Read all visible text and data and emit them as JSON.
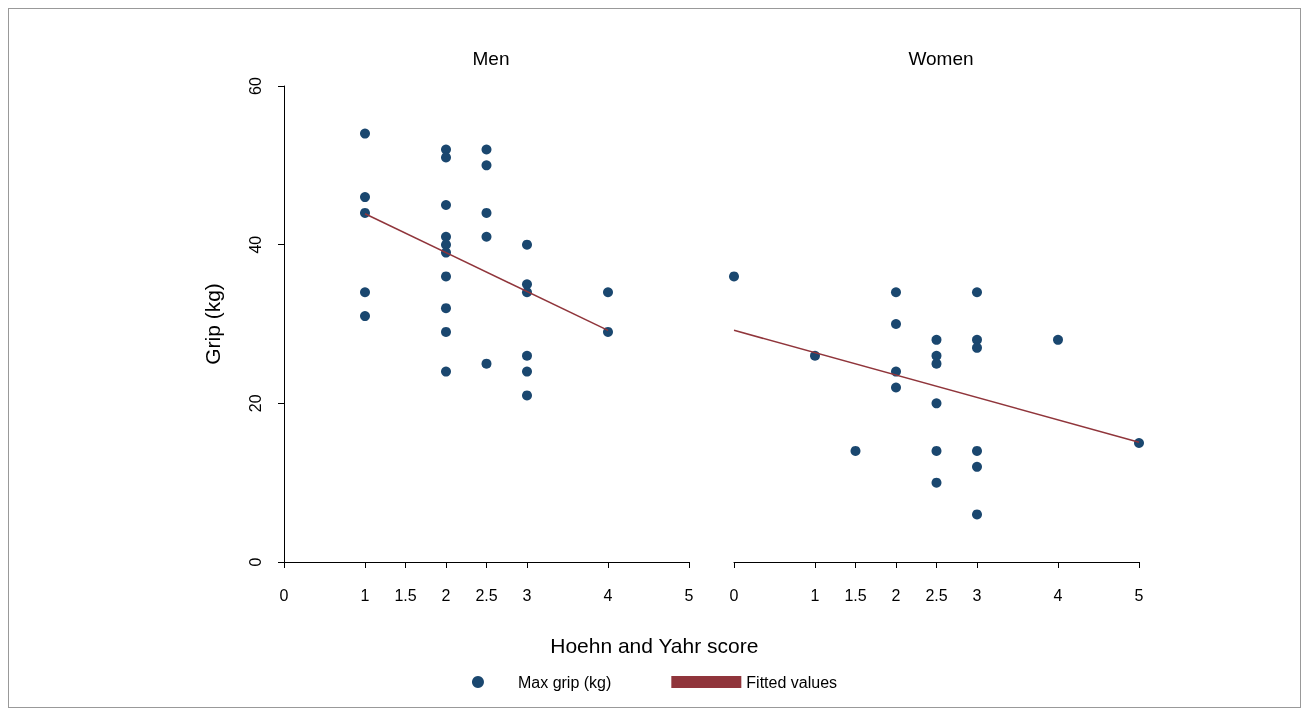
{
  "chart_data": [
    {
      "type": "scatter",
      "title": "Men",
      "ylabel": "Grip (kg)",
      "xlabel": "Hoehn and Yahr score",
      "legend": "bottom",
      "grid": false,
      "xlim": [
        0,
        5
      ],
      "xticks": [
        0,
        1,
        1.5,
        2,
        2.5,
        3,
        4,
        5
      ],
      "ylim": [
        0,
        60
      ],
      "yticks": [
        0,
        20,
        40,
        60
      ],
      "series": [
        {
          "name": "Max grip (kg)",
          "marker": "circle",
          "color": "#1a476f",
          "x": [
            1,
            1,
            1,
            1,
            1,
            2,
            2,
            2,
            2,
            2,
            2,
            2,
            2,
            2,
            2,
            2.5,
            2.5,
            2.5,
            2.5,
            2.5,
            3,
            3,
            3,
            3,
            3,
            3,
            4,
            4
          ],
          "values": [
            54,
            46,
            44,
            34,
            31,
            52,
            51,
            45,
            41,
            40,
            39,
            36,
            32,
            29,
            24,
            52,
            50,
            44,
            41,
            25,
            40,
            35,
            34,
            26,
            24,
            21,
            34,
            29
          ]
        },
        {
          "name": "Fitted values",
          "type": "line",
          "marker": "none",
          "color": "#90353b",
          "x": [
            1,
            4
          ],
          "values": [
            43.9,
            29.2
          ]
        }
      ]
    },
    {
      "type": "scatter",
      "title": "Women",
      "tick_labels": "x",
      "grid": false,
      "xlim": [
        0,
        5
      ],
      "xticks": [
        0,
        1,
        1.5,
        2,
        2.5,
        3,
        4,
        5
      ],
      "ylim": [
        0,
        60
      ],
      "yticks": [
        0,
        20,
        40,
        60
      ],
      "series": [
        {
          "marker": "circle",
          "color": "#1a476f",
          "x": [
            0,
            1,
            1.5,
            2,
            2,
            2,
            2,
            2.5,
            2.5,
            2.5,
            2.5,
            2.5,
            2.5,
            3,
            3,
            3,
            3,
            3,
            3,
            4,
            5
          ],
          "values": [
            36,
            26,
            14,
            34,
            30,
            24,
            22,
            28,
            26,
            25,
            20,
            14,
            10,
            34,
            28,
            27,
            14,
            12,
            6,
            28,
            15
          ]
        },
        {
          "type": "line",
          "marker": "none",
          "color": "#90353b",
          "x": [
            0,
            5
          ],
          "values": [
            29.2,
            15.1
          ]
        }
      ]
    }
  ]
}
